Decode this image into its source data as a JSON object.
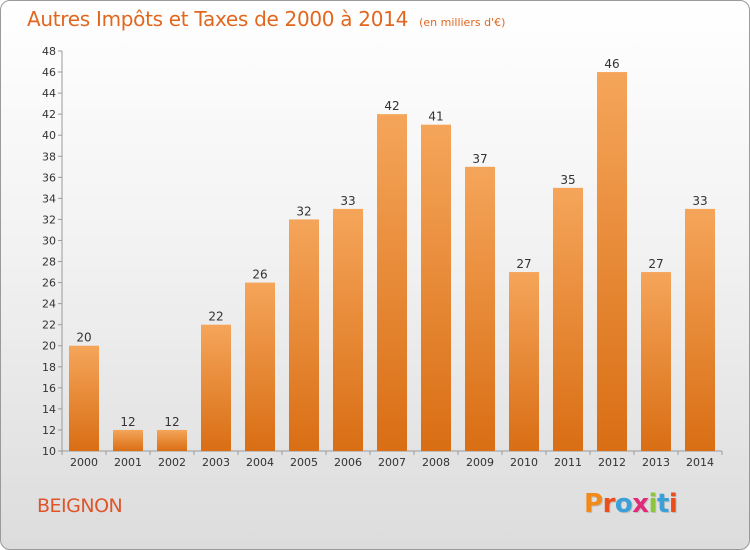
{
  "title": "Autres Impôts et Taxes de 2000 à 2014",
  "subtitle": "(en milliers d'€)",
  "commune": "BEIGNON",
  "logo": {
    "letters": [
      "P",
      "r",
      "o",
      "x",
      "i",
      "t",
      "i"
    ],
    "colors": [
      "#f08a1c",
      "#e94e1b",
      "#3aa0d8",
      "#e02a7a",
      "#8cc63f",
      "#3aa0d8",
      "#e94e1b"
    ]
  },
  "colors": {
    "bar_top": "#f5a55a",
    "bar_bottom": "#d96e14",
    "title": "#e2671e",
    "commune": "#e0542a"
  },
  "chart_data": {
    "type": "bar",
    "categories": [
      "2000",
      "2001",
      "2002",
      "2003",
      "2004",
      "2005",
      "2006",
      "2007",
      "2008",
      "2009",
      "2010",
      "2011",
      "2012",
      "2013",
      "2014"
    ],
    "values": [
      20,
      12,
      12,
      22,
      26,
      32,
      33,
      42,
      41,
      37,
      27,
      35,
      46,
      27,
      33
    ],
    "title": "Autres Impôts et Taxes de 2000 à 2014",
    "xlabel": "",
    "ylabel": "",
    "ylim": [
      10,
      48
    ],
    "yticks": [
      10,
      12,
      14,
      16,
      18,
      20,
      22,
      24,
      26,
      28,
      30,
      32,
      34,
      36,
      38,
      40,
      42,
      44,
      46,
      48
    ],
    "grid": false,
    "data_labels": true
  }
}
